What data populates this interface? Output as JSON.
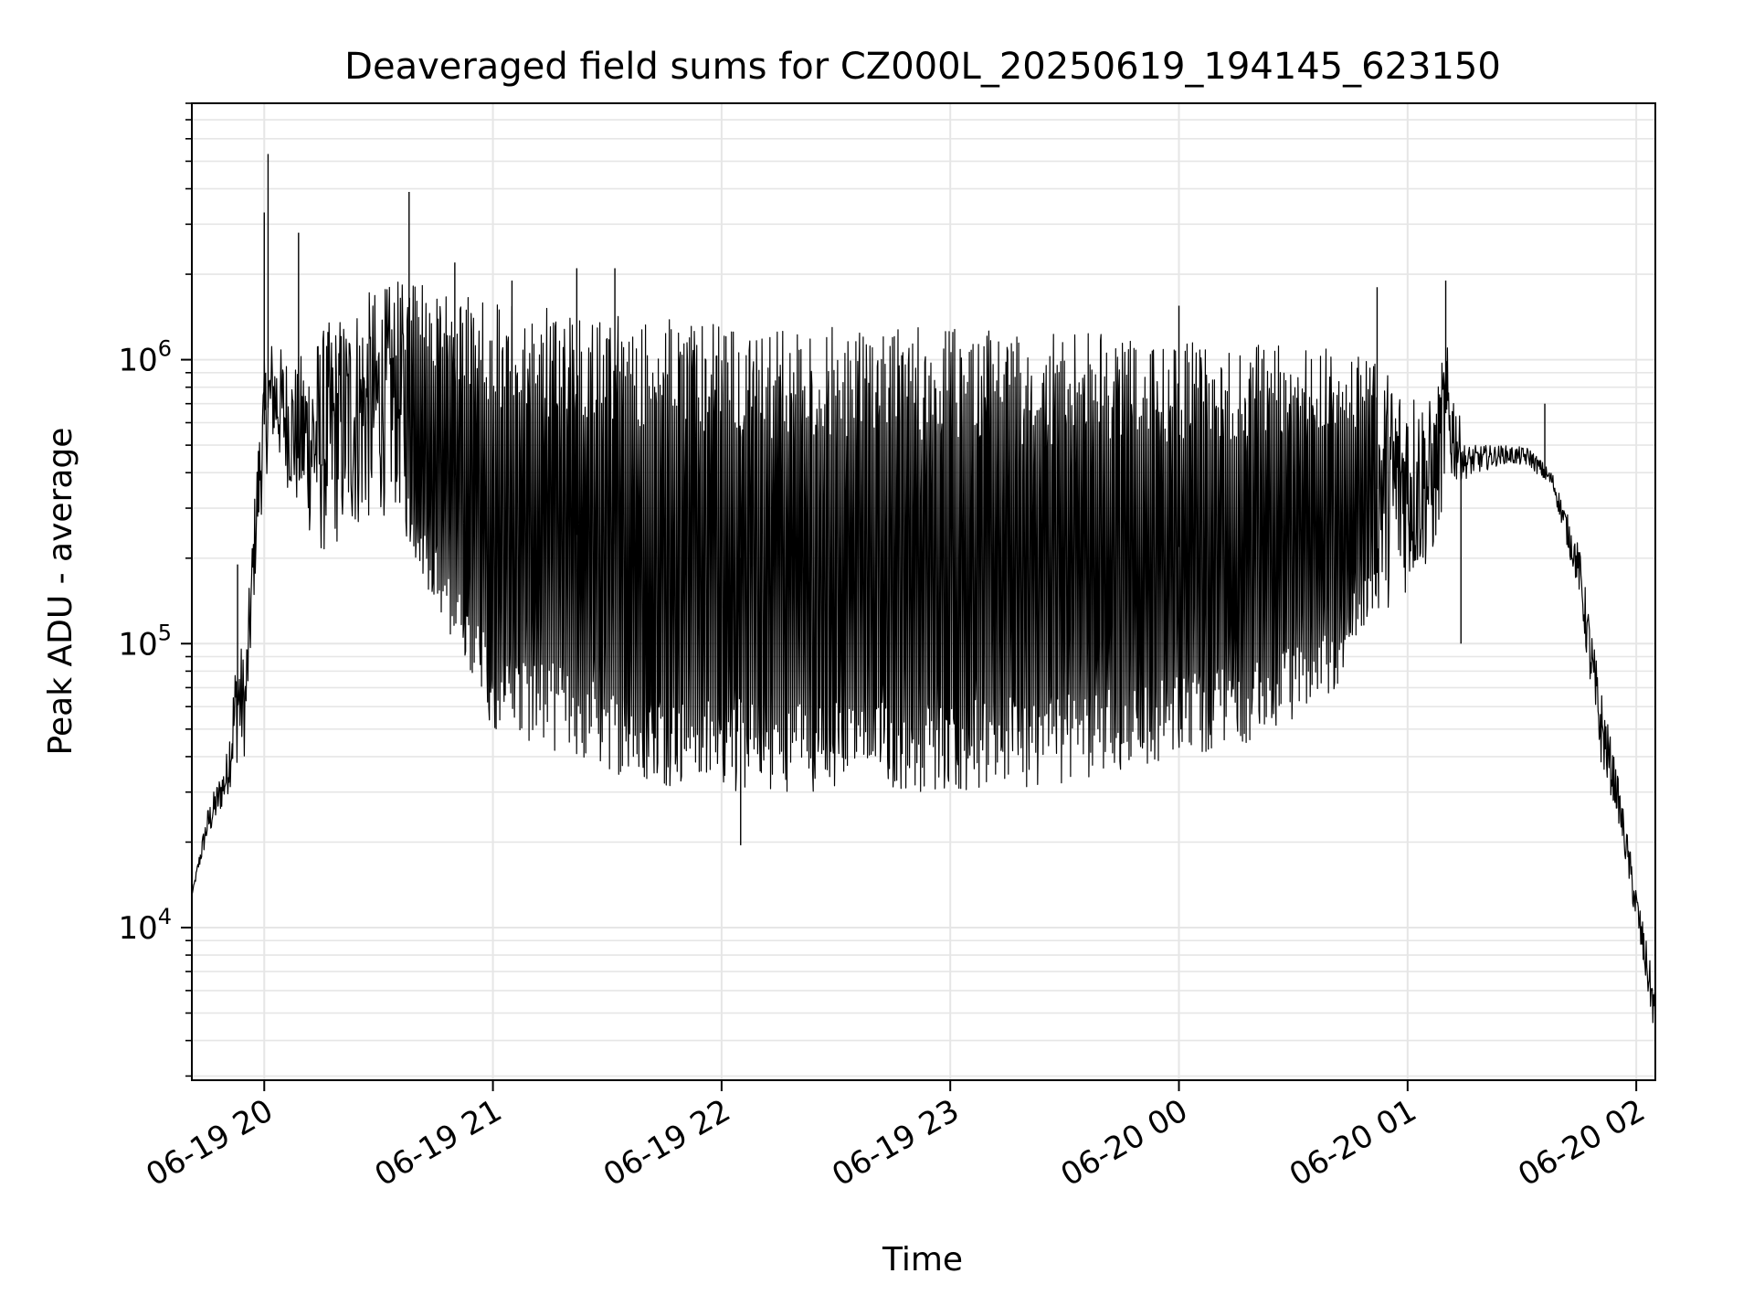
{
  "chart_data": {
    "type": "line",
    "title": "Deaveraged field sums for CZ000L_20250619_194145_623150",
    "xlabel": "Time",
    "ylabel": "Peak ADU - average",
    "x_scale": "time",
    "y_scale": "log",
    "xlim": [
      "2025-06-19 19:41",
      "2025-06-20 02:05"
    ],
    "ylim": [
      2900,
      8000000
    ],
    "x_ticks": [
      "06-19 20",
      "06-19 21",
      "06-19 22",
      "06-19 23",
      "06-20 00",
      "06-20 01",
      "06-20 02"
    ],
    "y_ticks": [
      {
        "base": "10",
        "exp": "4"
      },
      {
        "base": "10",
        "exp": "5"
      },
      {
        "base": "10",
        "exp": "6"
      }
    ],
    "grid": true,
    "line_color": "#000000",
    "envelope": [
      {
        "t": "2025-06-19 19:41",
        "low": 13000,
        "high": 13000
      },
      {
        "t": "2025-06-19 19:45",
        "low": 20000,
        "high": 26000
      },
      {
        "t": "2025-06-19 19:50",
        "low": 28000,
        "high": 40000
      },
      {
        "t": "2025-06-19 19:53",
        "low": 38000,
        "high": 110000
      },
      {
        "t": "2025-06-19 19:55",
        "low": 40000,
        "high": 90000
      },
      {
        "t": "2025-06-19 19:58",
        "low": 200000,
        "high": 450000
      },
      {
        "t": "2025-06-19 20:00",
        "low": 350000,
        "high": 1000000
      },
      {
        "t": "2025-06-19 20:02",
        "low": 500000,
        "high": 1200000
      },
      {
        "t": "2025-06-19 20:08",
        "low": 300000,
        "high": 1000000
      },
      {
        "t": "2025-06-19 20:15",
        "low": 200000,
        "high": 1300000
      },
      {
        "t": "2025-06-19 20:25",
        "low": 250000,
        "high": 1700000
      },
      {
        "t": "2025-06-19 20:35",
        "low": 300000,
        "high": 1900000
      },
      {
        "t": "2025-06-19 20:40",
        "low": 180000,
        "high": 1900000
      },
      {
        "t": "2025-06-19 20:45",
        "low": 140000,
        "high": 1700000
      },
      {
        "t": "2025-06-19 20:50",
        "low": 90000,
        "high": 1700000
      },
      {
        "t": "2025-06-19 21:00",
        "low": 50000,
        "high": 1600000
      },
      {
        "t": "2025-06-19 21:20",
        "low": 40000,
        "high": 1500000
      },
      {
        "t": "2025-06-19 21:40",
        "low": 32000,
        "high": 1400000
      },
      {
        "t": "2025-06-19 22:00",
        "low": 30000,
        "high": 1350000
      },
      {
        "t": "2025-06-19 22:30",
        "low": 30000,
        "high": 1300000
      },
      {
        "t": "2025-06-19 23:00",
        "low": 30000,
        "high": 1300000
      },
      {
        "t": "2025-06-19 23:30",
        "low": 32000,
        "high": 1250000
      },
      {
        "t": "2025-06-20 00:00",
        "low": 40000,
        "high": 1200000
      },
      {
        "t": "2025-06-20 00:20",
        "low": 45000,
        "high": 1150000
      },
      {
        "t": "2025-06-20 00:40",
        "low": 65000,
        "high": 1100000
      },
      {
        "t": "2025-06-20 00:50",
        "low": 120000,
        "high": 1000000
      },
      {
        "t": "2025-06-20 01:00",
        "low": 150000,
        "high": 900000
      },
      {
        "t": "2025-06-20 01:07",
        "low": 200000,
        "high": 700000
      },
      {
        "t": "2025-06-20 01:10",
        "low": 350000,
        "high": 1200000
      },
      {
        "t": "2025-06-20 01:15",
        "low": 380000,
        "high": 500000
      },
      {
        "t": "2025-06-20 01:25",
        "low": 430000,
        "high": 500000
      },
      {
        "t": "2025-06-20 01:32",
        "low": 420000,
        "high": 490000
      },
      {
        "t": "2025-06-20 01:38",
        "low": 350000,
        "high": 400000
      },
      {
        "t": "2025-06-20 01:45",
        "low": 150000,
        "high": 220000
      },
      {
        "t": "2025-06-20 01:50",
        "low": 40000,
        "high": 80000
      },
      {
        "t": "2025-06-20 01:55",
        "low": 25000,
        "high": 35000
      },
      {
        "t": "2025-06-20 02:00",
        "low": 10000,
        "high": 14000
      },
      {
        "t": "2025-06-20 02:05",
        "low": 4000,
        "high": 6000
      }
    ],
    "spikes": [
      {
        "t": "2025-06-19 19:53",
        "y": 190000
      },
      {
        "t": "2025-06-19 20:00",
        "y": 3300000
      },
      {
        "t": "2025-06-19 20:01",
        "y": 5300000
      },
      {
        "t": "2025-06-19 20:09",
        "y": 2800000
      },
      {
        "t": "2025-06-19 20:38",
        "y": 3900000
      },
      {
        "t": "2025-06-19 20:50",
        "y": 2200000
      },
      {
        "t": "2025-06-19 21:05",
        "y": 1900000
      },
      {
        "t": "2025-06-19 21:22",
        "y": 2100000
      },
      {
        "t": "2025-06-19 21:32",
        "y": 2100000
      },
      {
        "t": "2025-06-19 22:05",
        "y": 19500
      },
      {
        "t": "2025-06-20 00:00",
        "y": 1550000
      },
      {
        "t": "2025-06-20 00:52",
        "y": 1800000
      },
      {
        "t": "2025-06-20 01:10",
        "y": 1900000
      },
      {
        "t": "2025-06-20 01:14",
        "y": 100000
      },
      {
        "t": "2025-06-20 01:36",
        "y": 700000
      }
    ]
  }
}
